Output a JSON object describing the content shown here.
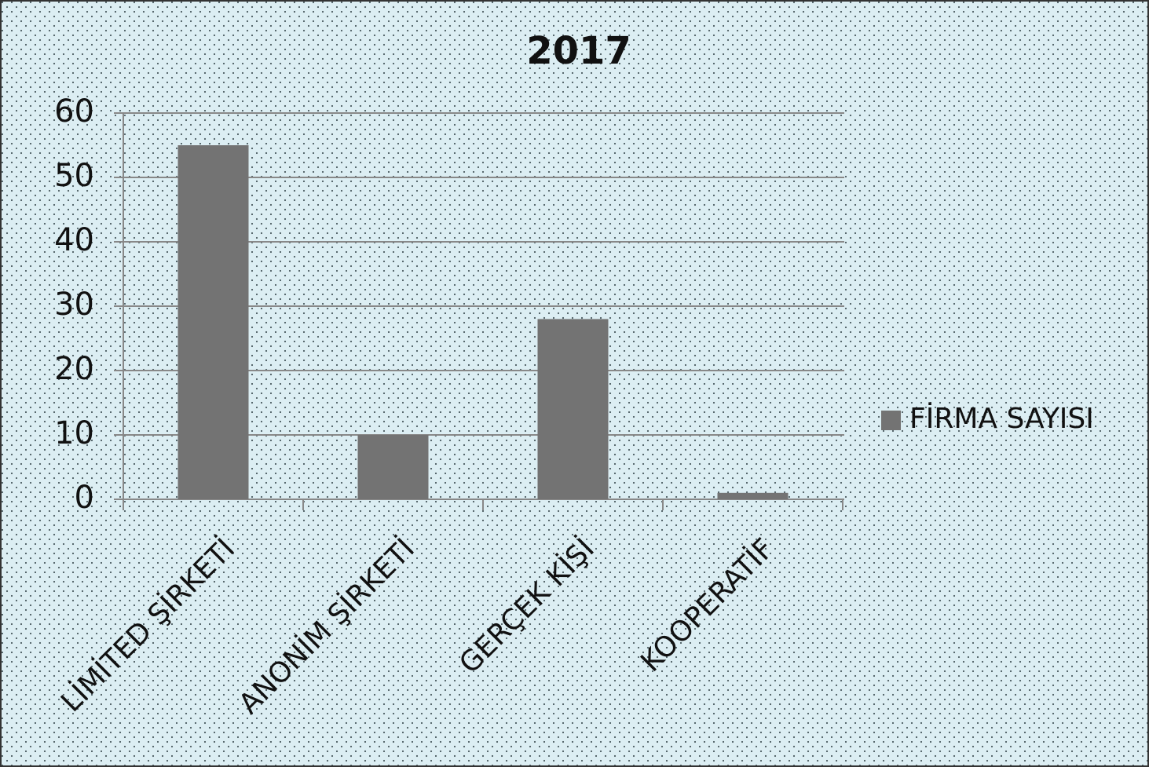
{
  "chart_data": {
    "type": "bar",
    "title": "2017",
    "categories": [
      "LİMİTED ŞİRKETİ",
      "ANONİM ŞİRKETİ",
      "GERÇEK KİŞİ",
      "KOOPERATİF"
    ],
    "series": [
      {
        "name": "FİRMA SAYISI",
        "color": "#737373",
        "values": [
          55,
          10,
          28,
          1
        ]
      }
    ],
    "ylim": [
      0,
      60
    ],
    "yticks": [
      0,
      10,
      20,
      30,
      40,
      50,
      60
    ],
    "grid": true,
    "legend": "right"
  }
}
